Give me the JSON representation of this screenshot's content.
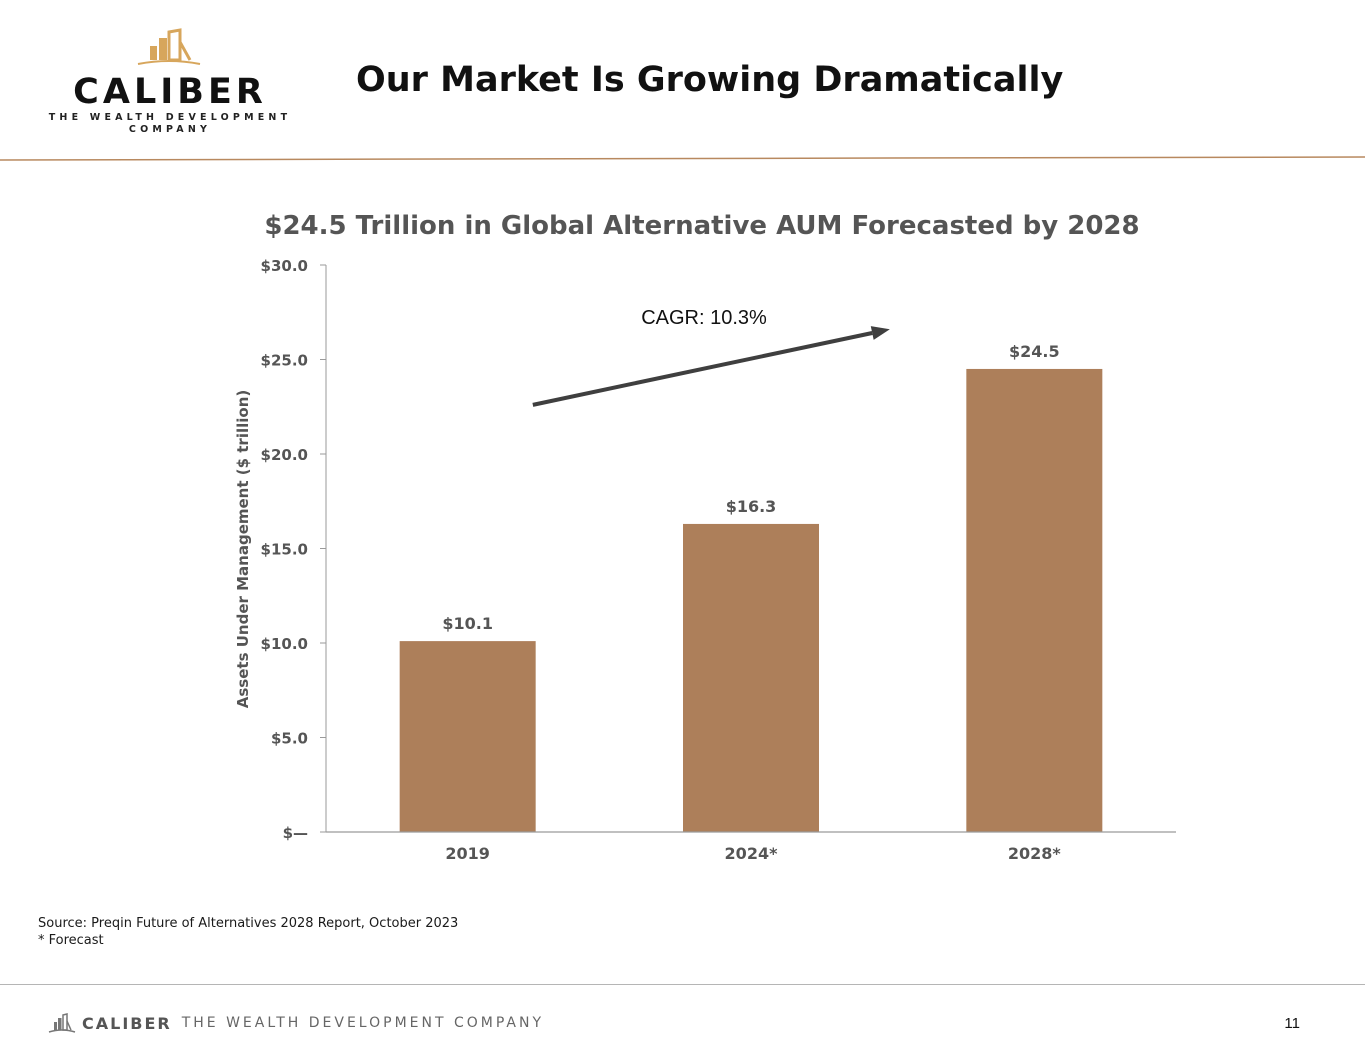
{
  "header": {
    "logo": {
      "wordmark": "CALIBER",
      "tagline_line1": "THE WEALTH DEVELOPMENT",
      "tagline_line2": "COMPANY"
    },
    "title": "Our Market Is Growing Dramatically"
  },
  "colors": {
    "bar": "#AD7F5A",
    "accent_gold": "#D7A65C",
    "rule": "#B8895F",
    "arrow": "#3F3F3F",
    "axis_text": "#555555"
  },
  "chart_data": {
    "type": "bar",
    "title": "$24.5 Trillion in Global Alternative AUM Forecasted by 2028",
    "xlabel": "",
    "ylabel": "Assets Under Management ($ trillion)",
    "categories": [
      "2019",
      "2024*",
      "2028*"
    ],
    "values": [
      10.1,
      16.3,
      24.5
    ],
    "data_labels": [
      "$10.1",
      "$16.3",
      "$24.5"
    ],
    "ylim": [
      0,
      30
    ],
    "y_ticks": [
      0,
      5,
      10,
      15,
      20,
      25,
      30
    ],
    "y_tick_labels": [
      "$—",
      "$5.0",
      "$10.0",
      "$15.0",
      "$20.0",
      "$25.0",
      "$30.0"
    ],
    "grid": false,
    "annotation": {
      "text": "CAGR: 10.3%",
      "arrow_from_value": 22.6,
      "arrow_to_value": 26.6
    }
  },
  "notes": {
    "source": "Source: Preqin Future of Alternatives 2028 Report, October 2023",
    "footnote": "* Forecast"
  },
  "footer": {
    "brand_name": "CALIBER",
    "brand_tagline": "THE WEALTH DEVELOPMENT  COMPANY",
    "page_number": "11"
  }
}
